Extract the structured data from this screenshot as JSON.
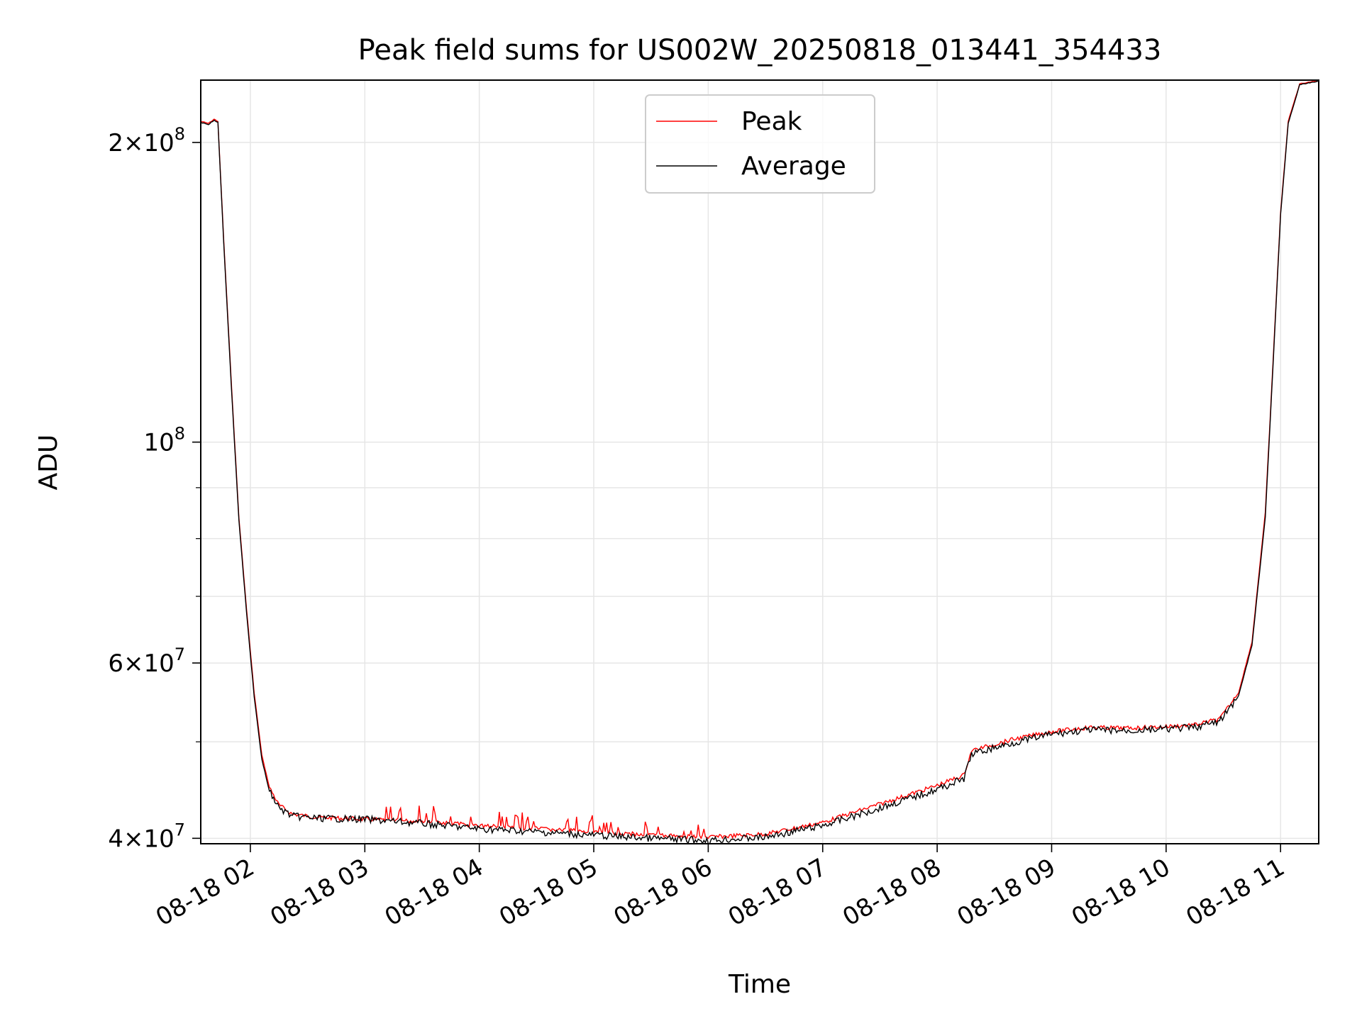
{
  "chart_data": {
    "type": "line",
    "title": "Peak field sums for US002W_20250818_013441_354433",
    "xlabel": "Time",
    "ylabel": "ADU",
    "x_type": "time",
    "xlim": [
      "2025-08-18 01:34",
      "2025-08-18 11:20"
    ],
    "ylim": [
      39500000,
      231000000
    ],
    "y_scale": "log",
    "grid": true,
    "legend_position": "upper-center",
    "x_ticks": [
      {
        "value": "2025-08-18 02:00",
        "label": "08-18 02"
      },
      {
        "value": "2025-08-18 03:00",
        "label": "08-18 03"
      },
      {
        "value": "2025-08-18 04:00",
        "label": "08-18 04"
      },
      {
        "value": "2025-08-18 05:00",
        "label": "08-18 05"
      },
      {
        "value": "2025-08-18 06:00",
        "label": "08-18 06"
      },
      {
        "value": "2025-08-18 07:00",
        "label": "08-18 07"
      },
      {
        "value": "2025-08-18 08:00",
        "label": "08-18 08"
      },
      {
        "value": "2025-08-18 09:00",
        "label": "08-18 09"
      },
      {
        "value": "2025-08-18 10:00",
        "label": "08-18 10"
      },
      {
        "value": "2025-08-18 11:00",
        "label": "08-18 11"
      }
    ],
    "y_ticks": [
      {
        "value": 200000000,
        "mantissa": "2",
        "exponent": "8"
      },
      {
        "value": 100000000,
        "mantissa": "",
        "exponent": "8"
      },
      {
        "value": 60000000,
        "mantissa": "6",
        "exponent": "7"
      },
      {
        "value": 40000000,
        "mantissa": "4",
        "exponent": "7"
      }
    ],
    "y_minor_ticks": [
      50000000,
      70000000,
      80000000,
      90000000
    ],
    "series": [
      {
        "name": "Peak",
        "color": "#ff0000",
        "points": [
          [
            "2025-08-18 01:34",
            210000000
          ],
          [
            "2025-08-18 01:38",
            209000000
          ],
          [
            "2025-08-18 01:41",
            211000000
          ],
          [
            "2025-08-18 01:43",
            210000000
          ],
          [
            "2025-08-18 01:46",
            160000000
          ],
          [
            "2025-08-18 01:50",
            115000000
          ],
          [
            "2025-08-18 01:54",
            84000000
          ],
          [
            "2025-08-18 01:58",
            68000000
          ],
          [
            "2025-08-18 02:02",
            56000000
          ],
          [
            "2025-08-18 02:06",
            48500000
          ],
          [
            "2025-08-18 02:10",
            45000000
          ],
          [
            "2025-08-18 02:15",
            43200000
          ],
          [
            "2025-08-18 02:22",
            42300000
          ],
          [
            "2025-08-18 02:35",
            42000000
          ],
          [
            "2025-08-18 03:00",
            41800000
          ],
          [
            "2025-08-18 03:30",
            41600000
          ],
          [
            "2025-08-18 04:00",
            41200000
          ],
          [
            "2025-08-18 04:30",
            40900000
          ],
          [
            "2025-08-18 05:00",
            40600000
          ],
          [
            "2025-08-18 05:30",
            40300000
          ],
          [
            "2025-08-18 06:00",
            40100000
          ],
          [
            "2025-08-18 06:30",
            40400000
          ],
          [
            "2025-08-18 07:00",
            41500000
          ],
          [
            "2025-08-18 07:30",
            43300000
          ],
          [
            "2025-08-18 08:00",
            45200000
          ],
          [
            "2025-08-18 08:14",
            46300000
          ],
          [
            "2025-08-18 08:18",
            49000000
          ],
          [
            "2025-08-18 08:40",
            50300000
          ],
          [
            "2025-08-18 09:00",
            51200000
          ],
          [
            "2025-08-18 09:20",
            51700000
          ],
          [
            "2025-08-18 09:40",
            51600000
          ],
          [
            "2025-08-18 10:00",
            51800000
          ],
          [
            "2025-08-18 10:15",
            52000000
          ],
          [
            "2025-08-18 10:28",
            52700000
          ],
          [
            "2025-08-18 10:38",
            56000000
          ],
          [
            "2025-08-18 10:45",
            63000000
          ],
          [
            "2025-08-18 10:52",
            85000000
          ],
          [
            "2025-08-18 10:56",
            120000000
          ],
          [
            "2025-08-18 11:00",
            170000000
          ],
          [
            "2025-08-18 11:04",
            210000000
          ],
          [
            "2025-08-18 11:10",
            229000000
          ],
          [
            "2025-08-18 11:20",
            231000000
          ]
        ]
      },
      {
        "name": "Average",
        "color": "#000000",
        "points": [
          [
            "2025-08-18 01:34",
            209500000
          ],
          [
            "2025-08-18 01:38",
            208500000
          ],
          [
            "2025-08-18 01:41",
            210500000
          ],
          [
            "2025-08-18 01:43",
            209500000
          ],
          [
            "2025-08-18 01:46",
            159000000
          ],
          [
            "2025-08-18 01:50",
            114000000
          ],
          [
            "2025-08-18 01:54",
            83500000
          ],
          [
            "2025-08-18 01:58",
            67500000
          ],
          [
            "2025-08-18 02:02",
            55500000
          ],
          [
            "2025-08-18 02:06",
            48000000
          ],
          [
            "2025-08-18 02:10",
            44600000
          ],
          [
            "2025-08-18 02:15",
            42900000
          ],
          [
            "2025-08-18 02:22",
            42100000
          ],
          [
            "2025-08-18 02:35",
            41900000
          ],
          [
            "2025-08-18 03:00",
            41800000
          ],
          [
            "2025-08-18 03:30",
            41400000
          ],
          [
            "2025-08-18 04:00",
            40900000
          ],
          [
            "2025-08-18 04:30",
            40600000
          ],
          [
            "2025-08-18 05:00",
            40300000
          ],
          [
            "2025-08-18 05:30",
            40000000
          ],
          [
            "2025-08-18 06:00",
            39800000
          ],
          [
            "2025-08-18 06:30",
            40100000
          ],
          [
            "2025-08-18 07:00",
            41200000
          ],
          [
            "2025-08-18 07:30",
            42900000
          ],
          [
            "2025-08-18 08:00",
            44800000
          ],
          [
            "2025-08-18 08:14",
            45900000
          ],
          [
            "2025-08-18 08:18",
            48600000
          ],
          [
            "2025-08-18 08:40",
            49900000
          ],
          [
            "2025-08-18 09:00",
            50900000
          ],
          [
            "2025-08-18 09:20",
            51400000
          ],
          [
            "2025-08-18 09:40",
            51300000
          ],
          [
            "2025-08-18 10:00",
            51500000
          ],
          [
            "2025-08-18 10:15",
            51700000
          ],
          [
            "2025-08-18 10:28",
            52400000
          ],
          [
            "2025-08-18 10:38",
            55600000
          ],
          [
            "2025-08-18 10:45",
            62500000
          ],
          [
            "2025-08-18 10:52",
            84000000
          ],
          [
            "2025-08-18 10:56",
            119000000
          ],
          [
            "2025-08-18 11:00",
            169000000
          ],
          [
            "2025-08-18 11:04",
            209000000
          ],
          [
            "2025-08-18 11:10",
            228500000
          ],
          [
            "2025-08-18 11:20",
            230500000
          ]
        ]
      }
    ]
  }
}
